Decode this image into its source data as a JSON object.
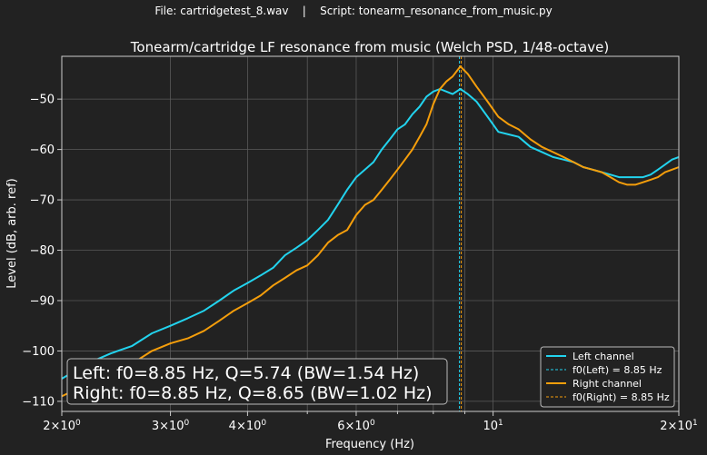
{
  "header": {
    "file": "File: cartridgetest_8.wav",
    "separator": "|",
    "script": "Script: tonearm_resonance_from_music.py"
  },
  "colors": {
    "background": "#222222",
    "left": "#22d3ee",
    "right": "#f59e0b",
    "grid": "#5a5a5a",
    "text": "#ffffff"
  },
  "chart_data": {
    "type": "line",
    "title": "Tonearm/cartridge LF resonance from music (Welch PSD, 1/48-octave)",
    "xlabel": "Frequency (Hz)",
    "ylabel": "Level (dB, arb. ref)",
    "xscale": "log",
    "xlim": [
      2,
      20
    ],
    "ylim": [
      -112,
      -41.5
    ],
    "grid": true,
    "legend_position": "lower-right",
    "x_ticks": [
      {
        "value": 2,
        "base": "2×10",
        "exp": "0"
      },
      {
        "value": 3,
        "base": "3×10",
        "exp": "0"
      },
      {
        "value": 4,
        "base": "4×10",
        "exp": "0"
      },
      {
        "value": 6,
        "base": "6×10",
        "exp": "0"
      },
      {
        "value": 10,
        "base": "10",
        "exp": "1"
      },
      {
        "value": 20,
        "base": "2×10",
        "exp": "1"
      }
    ],
    "x_minor_ticks": [
      5,
      7,
      8,
      9
    ],
    "y_ticks": [
      -110,
      -100,
      -90,
      -80,
      -70,
      -60,
      -50
    ],
    "y_tick_labels": [
      "−110",
      "−100",
      "−90",
      "−80",
      "−70",
      "−60",
      "−50"
    ],
    "series": [
      {
        "name": "Left channel",
        "color": "#22d3ee",
        "x": [
          2.0,
          2.2,
          2.4,
          2.6,
          2.8,
          3.0,
          3.2,
          3.4,
          3.6,
          3.8,
          4.0,
          4.2,
          4.4,
          4.6,
          4.8,
          5.0,
          5.2,
          5.4,
          5.6,
          5.8,
          6.0,
          6.2,
          6.4,
          6.6,
          6.8,
          7.0,
          7.2,
          7.4,
          7.6,
          7.8,
          8.0,
          8.2,
          8.4,
          8.6,
          8.85,
          9.1,
          9.4,
          9.8,
          10.2,
          10.6,
          11.0,
          11.5,
          12.0,
          12.5,
          13.0,
          13.5,
          14.0,
          14.5,
          15.0,
          15.5,
          16.0,
          16.5,
          17.0,
          17.5,
          18.0,
          18.5,
          19.0,
          19.5,
          20.0
        ],
        "y": [
          -105.5,
          -102.5,
          -100.5,
          -99,
          -96.5,
          -95,
          -93.5,
          -92,
          -90,
          -88,
          -86.5,
          -85,
          -83.5,
          -81,
          -79.5,
          -78,
          -76,
          -74,
          -71,
          -68,
          -65.5,
          -64,
          -62.5,
          -60,
          -58,
          -56,
          -55,
          -53,
          -51.5,
          -49.5,
          -48.5,
          -48,
          -48.5,
          -49,
          -48,
          -49,
          -50.5,
          -53.5,
          -56.5,
          -57,
          -57.5,
          -59.5,
          -60.5,
          -61.5,
          -62,
          -62.5,
          -63.5,
          -64,
          -64.5,
          -65,
          -65.5,
          -65.5,
          -65.5,
          -65.5,
          -65,
          -64,
          -63,
          -62,
          -61.5
        ]
      },
      {
        "name": "Right channel",
        "color": "#f59e0b",
        "x": [
          2.0,
          2.2,
          2.4,
          2.6,
          2.8,
          3.0,
          3.2,
          3.4,
          3.6,
          3.8,
          4.0,
          4.2,
          4.4,
          4.6,
          4.8,
          5.0,
          5.2,
          5.4,
          5.6,
          5.8,
          6.0,
          6.2,
          6.4,
          6.6,
          6.8,
          7.0,
          7.2,
          7.4,
          7.6,
          7.8,
          8.0,
          8.2,
          8.4,
          8.6,
          8.85,
          9.1,
          9.4,
          9.8,
          10.2,
          10.6,
          11.0,
          11.5,
          12.0,
          12.5,
          13.0,
          13.5,
          14.0,
          14.5,
          15.0,
          15.5,
          16.0,
          16.5,
          17.0,
          17.5,
          18.0,
          18.5,
          19.0,
          19.5,
          20.0
        ],
        "y": [
          -109,
          -106.5,
          -104.5,
          -102.5,
          -100,
          -98.5,
          -97.5,
          -96,
          -94,
          -92,
          -90.5,
          -89,
          -87,
          -85.5,
          -84,
          -83,
          -81,
          -78.5,
          -77,
          -76,
          -73,
          -71,
          -70,
          -68,
          -66,
          -64,
          -62,
          -60,
          -57.5,
          -55,
          -51,
          -48,
          -46.5,
          -45.5,
          -43.5,
          -45,
          -47.5,
          -50.5,
          -53.5,
          -55,
          -56,
          -58,
          -59.5,
          -60.5,
          -61.5,
          -62.5,
          -63.5,
          -64,
          -64.5,
          -65.5,
          -66.5,
          -67,
          -67,
          -66.5,
          -66,
          -65.5,
          -64.5,
          -64,
          -63.5
        ]
      }
    ],
    "f0_lines": [
      {
        "name": "f0(Left) = 8.85 Hz",
        "x": 8.85,
        "color": "#22d3ee"
      },
      {
        "name": "f0(Right) = 8.85 Hz",
        "x": 8.85,
        "color": "#f59e0b"
      }
    ],
    "annotation": [
      "Left: f0=8.85 Hz, Q=5.74 (BW=1.54 Hz)",
      "Right: f0=8.85 Hz, Q=8.65 (BW=1.02 Hz)"
    ]
  }
}
